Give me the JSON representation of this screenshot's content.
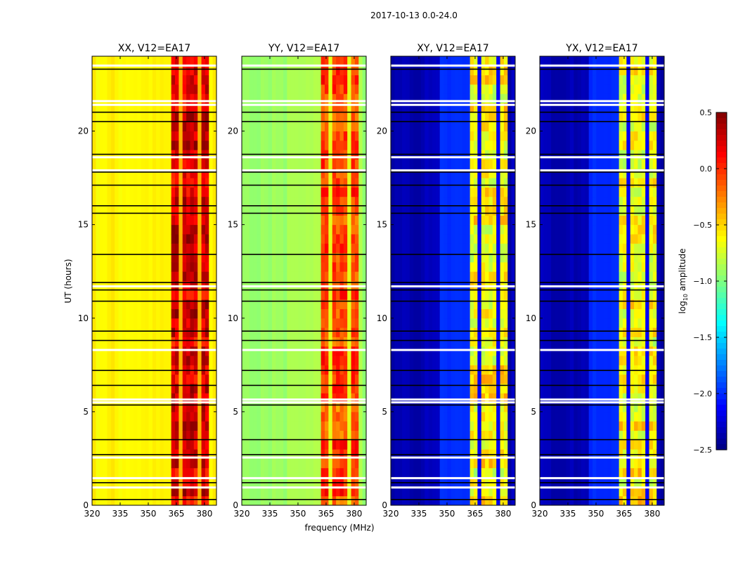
{
  "chart_data": {
    "type": "heatmap",
    "suptitle": "2017-10-13 0.0-24.0",
    "xlabel": "frequency (MHz)",
    "ylabel": "UT (hours)",
    "xlim": [
      320,
      386.4
    ],
    "ylim": [
      0,
      24
    ],
    "xticks": [
      "320",
      "335",
      "350",
      "365",
      "380"
    ],
    "xtick_values": [
      320,
      335,
      350,
      365,
      380
    ],
    "yticks": [
      "0",
      "5",
      "10",
      "15",
      "20"
    ],
    "ytick_values": [
      0,
      5,
      10,
      15,
      20
    ],
    "colorbar": {
      "label": "log10 amplitude",
      "label_main": "log",
      "label_sub": "10",
      "label_rest": " amplitude",
      "colormap": "jet",
      "range": [
        -2.5,
        0.5
      ],
      "ticks": [
        "0.5",
        "0.0",
        "−0.5",
        "−1.0",
        "−1.5",
        "−2.0",
        "−2.5"
      ],
      "tick_values": [
        0.5,
        0.0,
        -0.5,
        -1.0,
        -1.5,
        -2.0,
        -2.5
      ]
    },
    "band_channels_mhz": [
      [
        362.5,
        367
      ],
      [
        367.5,
        372
      ],
      [
        372.5,
        377
      ],
      [
        377.5,
        381.5
      ]
    ],
    "flagged_white_hours": [
      23.5,
      21.6,
      21.4,
      18.6,
      17.9,
      11.7,
      8.3,
      5.65,
      5.5,
      2.55,
      1.45,
      0.95
    ],
    "flagged_black_hours": [
      23.3,
      21.0,
      20.5,
      18.75,
      17.8,
      17.1,
      16.0,
      15.6,
      13.4,
      11.9,
      11.5,
      10.9,
      9.3,
      8.8,
      7.2,
      6.4,
      5.35,
      3.5,
      2.7,
      1.2,
      0.3
    ],
    "panels": [
      {
        "title": "XX, V12=EA17",
        "background": -0.6,
        "mid_column": -0.6,
        "band": 0.15
      },
      {
        "title": "YY, V12=EA17",
        "background": -0.9,
        "mid_column": -0.85,
        "band": -0.15
      },
      {
        "title": "XY, V12=EA17",
        "background": -2.35,
        "mid_column": -2.0,
        "band": -0.7
      },
      {
        "title": "YX, V12=EA17",
        "background": -2.35,
        "mid_column": -2.0,
        "band": -0.7
      }
    ]
  }
}
